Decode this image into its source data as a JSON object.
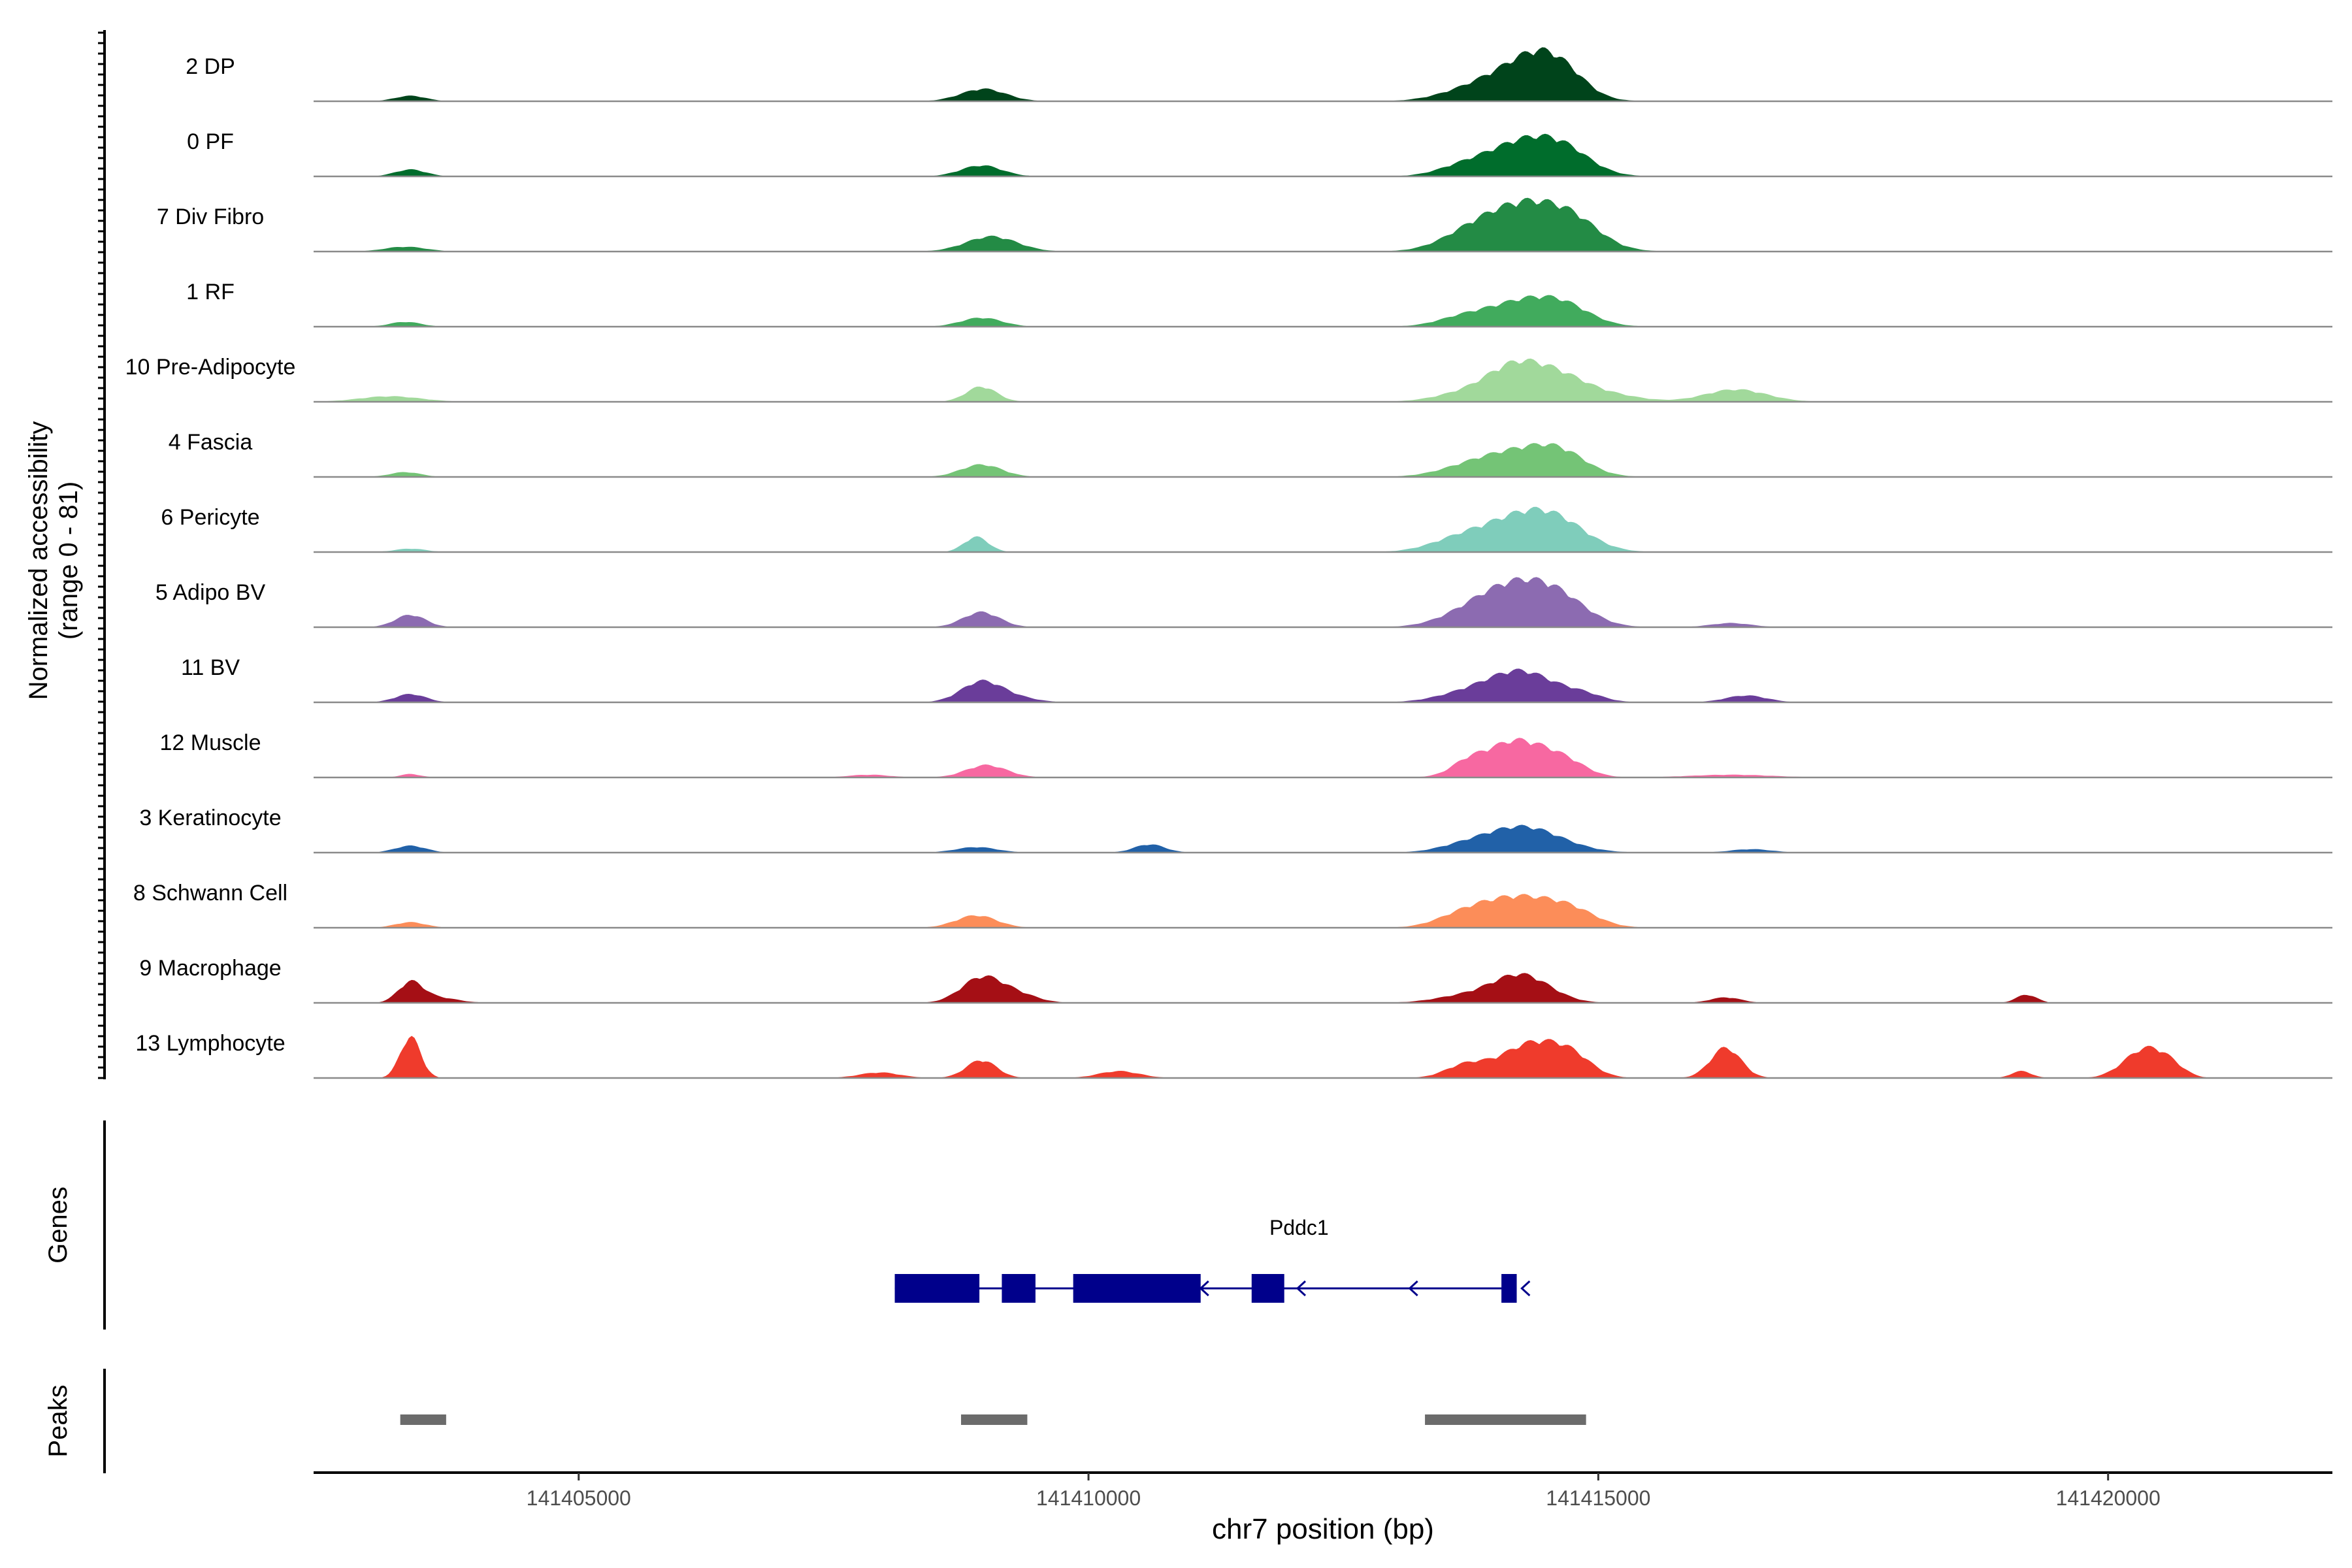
{
  "chart_data": {
    "type": "area",
    "title": "",
    "ylabel_line1": "Normalized accessibility",
    "ylabel_line2": "(range 0 - 81)",
    "xlabel": "chr7 position (bp)",
    "chromosome": "chr7",
    "xlim": [
      141402400,
      141422200
    ],
    "xticks": [
      141405000,
      141410000,
      141415000,
      141420000
    ],
    "xtick_labels": [
      "141405000",
      "141410000",
      "141415000",
      "141420000"
    ],
    "ylim": [
      0,
      81
    ],
    "tracks": [
      {
        "name": "2 DP",
        "color": "#00441b",
        "peaks": [
          [
            141403350,
            8,
            150
          ],
          [
            141408970,
            18,
            220
          ],
          [
            141413650,
            8,
            300
          ],
          [
            141414250,
            48,
            380
          ],
          [
            141414500,
            30,
            250
          ],
          [
            141414750,
            10,
            200
          ]
        ]
      },
      {
        "name": "0 PF",
        "color": "#006d2c",
        "peaks": [
          [
            141403350,
            10,
            150
          ],
          [
            141408950,
            16,
            200
          ],
          [
            141413650,
            10,
            250
          ],
          [
            141414300,
            52,
            380
          ],
          [
            141414700,
            18,
            250
          ]
        ]
      },
      {
        "name": "7 Div Fibro",
        "color": "#238b45",
        "peaks": [
          [
            141403300,
            7,
            200
          ],
          [
            141409050,
            22,
            250
          ],
          [
            141413700,
            14,
            280
          ],
          [
            141414300,
            70,
            420
          ],
          [
            141414800,
            20,
            250
          ]
        ]
      },
      {
        "name": "1 RF",
        "color": "#41ab5d",
        "peaks": [
          [
            141403300,
            7,
            150
          ],
          [
            141408950,
            13,
            200
          ],
          [
            141413650,
            10,
            250
          ],
          [
            141414300,
            38,
            380
          ],
          [
            141414700,
            15,
            250
          ]
        ]
      },
      {
        "name": "10 Pre-Adipocyte",
        "color": "#a1d99b",
        "peaks": [
          [
            141403150,
            8,
            300
          ],
          [
            141408950,
            22,
            150
          ],
          [
            141413700,
            12,
            300
          ],
          [
            141414200,
            50,
            280
          ],
          [
            141414650,
            28,
            260
          ],
          [
            141415100,
            10,
            300
          ],
          [
            141416350,
            18,
            300
          ]
        ]
      },
      {
        "name": "4 Fascia",
        "color": "#74c476",
        "peaks": [
          [
            141403300,
            7,
            150
          ],
          [
            141408950,
            18,
            200
          ],
          [
            141413700,
            10,
            300
          ],
          [
            141414250,
            36,
            380
          ],
          [
            141414650,
            22,
            250
          ]
        ]
      },
      {
        "name": "6 Pericyte",
        "color": "#7fcdbb",
        "peaks": [
          [
            141403350,
            5,
            150
          ],
          [
            141408900,
            22,
            120
          ],
          [
            141413650,
            18,
            300
          ],
          [
            141414250,
            46,
            350
          ],
          [
            141414650,
            28,
            300
          ]
        ]
      },
      {
        "name": "5 Adipo BV",
        "color": "#8c6bb1",
        "peaks": [
          [
            141403350,
            18,
            150
          ],
          [
            141408950,
            22,
            180
          ],
          [
            141413700,
            10,
            300
          ],
          [
            141414200,
            60,
            380
          ],
          [
            141414650,
            24,
            280
          ],
          [
            141416300,
            6,
            200
          ]
        ]
      },
      {
        "name": "11 BV",
        "color": "#6a3d9a",
        "peaks": [
          [
            141403350,
            12,
            150
          ],
          [
            141408950,
            30,
            200
          ],
          [
            141409300,
            6,
            200
          ],
          [
            141413700,
            12,
            300
          ],
          [
            141414250,
            44,
            320
          ],
          [
            141414850,
            10,
            200
          ],
          [
            141416450,
            10,
            200
          ]
        ]
      },
      {
        "name": "12 Muscle",
        "color": "#f768a1",
        "peaks": [
          [
            141403350,
            5,
            100
          ],
          [
            141407850,
            4,
            200
          ],
          [
            141409000,
            18,
            200
          ],
          [
            141413700,
            12,
            150
          ],
          [
            141414200,
            54,
            330
          ],
          [
            141414700,
            14,
            200
          ],
          [
            141416300,
            4,
            400
          ]
        ]
      },
      {
        "name": "3 Keratinocyte",
        "color": "#2161a8",
        "peaks": [
          [
            141403350,
            10,
            150
          ],
          [
            141408900,
            8,
            200
          ],
          [
            141410600,
            12,
            150
          ],
          [
            141413650,
            6,
            250
          ],
          [
            141414250,
            38,
            380
          ],
          [
            141416500,
            5,
            200
          ]
        ]
      },
      {
        "name": "8 Schwann Cell",
        "color": "#fc8d59",
        "peaks": [
          [
            141403350,
            8,
            150
          ],
          [
            141408900,
            18,
            200
          ],
          [
            141413650,
            12,
            250
          ],
          [
            141414200,
            44,
            380
          ],
          [
            141414750,
            18,
            250
          ]
        ]
      },
      {
        "name": "9 Macrophage",
        "color": "#a50f15",
        "peaks": [
          [
            141403350,
            28,
            120
          ],
          [
            141403600,
            8,
            200
          ],
          [
            141408950,
            36,
            200
          ],
          [
            141409300,
            12,
            200
          ],
          [
            141413700,
            10,
            300
          ],
          [
            141414250,
            40,
            280
          ],
          [
            141416250,
            8,
            150
          ],
          [
            141419200,
            12,
            100
          ]
        ]
      },
      {
        "name": "13 Lymphocyte",
        "color": "#ef3b2c",
        "peaks": [
          [
            141403350,
            60,
            100
          ],
          [
            141407950,
            8,
            200
          ],
          [
            141408950,
            26,
            150
          ],
          [
            141410300,
            10,
            200
          ],
          [
            141413700,
            18,
            200
          ],
          [
            141414350,
            50,
            300
          ],
          [
            141414750,
            22,
            200
          ],
          [
            141416250,
            44,
            150
          ],
          [
            141419150,
            10,
            100
          ],
          [
            141420350,
            40,
            200
          ],
          [
            141420600,
            14,
            150
          ]
        ]
      }
    ],
    "genes": {
      "label": "Genes",
      "color": "#00008b",
      "items": [
        {
          "name": "Pddc1",
          "strand": "-",
          "start": 141408100,
          "end": 141414200,
          "exons": [
            [
              141408100,
              141408930
            ],
            [
              141409150,
              141409480
            ],
            [
              141409850,
              141411100
            ],
            [
              141411600,
              141411920
            ],
            [
              141414050,
              141414200
            ]
          ],
          "arrow_positions": [
            141411100,
            141412050,
            141413150,
            141414250
          ]
        }
      ]
    },
    "peaks_track": {
      "label": "Peaks",
      "color": "#6b6b6b",
      "regions": [
        [
          141403250,
          141403700
        ],
        [
          141408750,
          141409400
        ],
        [
          141413300,
          141414880
        ]
      ]
    }
  }
}
